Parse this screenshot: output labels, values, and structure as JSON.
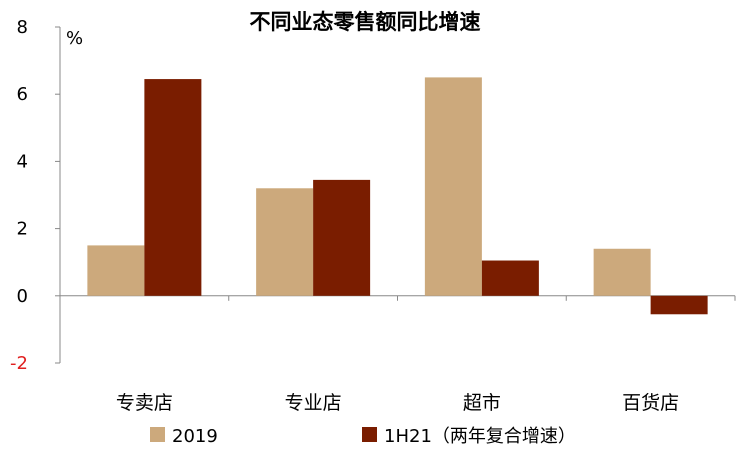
{
  "chart_data": {
    "type": "bar",
    "title": "不同业态零售额同比增速",
    "ylabel": "%",
    "categories": [
      "专卖店",
      "专业店",
      "超市",
      "百货店"
    ],
    "series": [
      {
        "name": "2019",
        "values": [
          1.5,
          3.2,
          6.5,
          1.4
        ],
        "color": "#cca97c"
      },
      {
        "name": "1H21（两年复合增速）",
        "values": [
          6.45,
          3.45,
          1.05,
          -0.55
        ],
        "color": "#7a1d00"
      }
    ],
    "ylim": [
      -2,
      8
    ],
    "yticks": [
      -2,
      0,
      2,
      4,
      6,
      8
    ],
    "negative_tick_color": "#e02020",
    "grid": false,
    "legend_position": "bottom"
  }
}
